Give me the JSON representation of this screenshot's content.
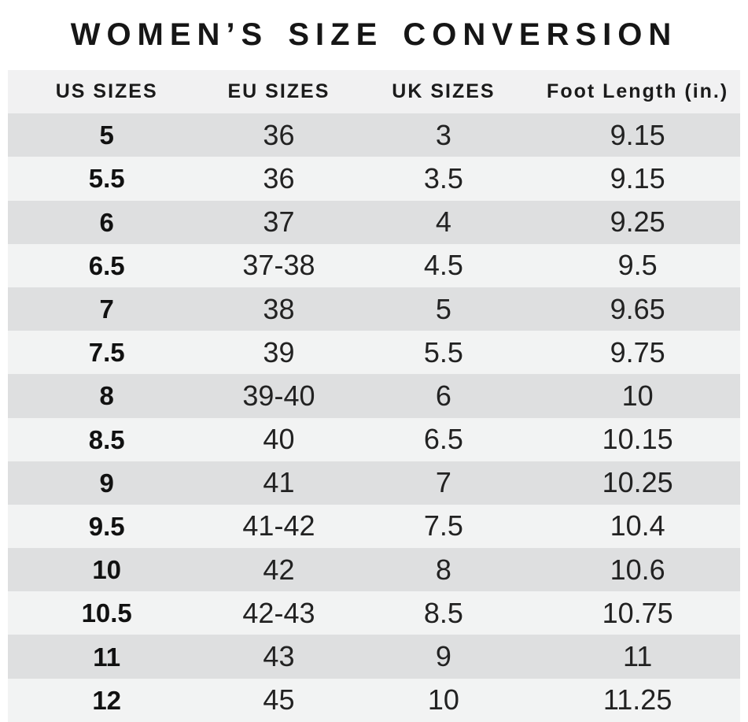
{
  "title": "WOMEN’S SIZE CONVERSION",
  "table": {
    "headers": [
      "US SIZES",
      "EU SIZES",
      "UK SIZES",
      "Foot Length (in.)"
    ],
    "rows": [
      [
        "5",
        "36",
        "3",
        "9.15"
      ],
      [
        "5.5",
        "36",
        "3.5",
        "9.15"
      ],
      [
        "6",
        "37",
        "4",
        "9.25"
      ],
      [
        "6.5",
        "37-38",
        "4.5",
        "9.5"
      ],
      [
        "7",
        "38",
        "5",
        "9.65"
      ],
      [
        "7.5",
        "39",
        "5.5",
        "9.75"
      ],
      [
        "8",
        "39-40",
        "6",
        "10"
      ],
      [
        "8.5",
        "40",
        "6.5",
        "10.15"
      ],
      [
        "9",
        "41",
        "7",
        "10.25"
      ],
      [
        "9.5",
        "41-42",
        "7.5",
        "10.4"
      ],
      [
        "10",
        "42",
        "8",
        "10.6"
      ],
      [
        "10.5",
        "42-43",
        "8.5",
        "10.75"
      ],
      [
        "11",
        "43",
        "9",
        "11"
      ],
      [
        "12",
        "45",
        "10",
        "11.25"
      ]
    ]
  },
  "chart_data": {
    "type": "table",
    "title": "WOMEN’S SIZE CONVERSION",
    "columns": [
      "US SIZES",
      "EU SIZES",
      "UK SIZES",
      "Foot Length (in.)"
    ],
    "rows": [
      [
        "5",
        "36",
        "3",
        "9.15"
      ],
      [
        "5.5",
        "36",
        "3.5",
        "9.15"
      ],
      [
        "6",
        "37",
        "4",
        "9.25"
      ],
      [
        "6.5",
        "37-38",
        "4.5",
        "9.5"
      ],
      [
        "7",
        "38",
        "5",
        "9.65"
      ],
      [
        "7.5",
        "39",
        "5.5",
        "9.75"
      ],
      [
        "8",
        "39-40",
        "6",
        "10"
      ],
      [
        "8.5",
        "40",
        "6.5",
        "10.15"
      ],
      [
        "9",
        "41",
        "7",
        "10.25"
      ],
      [
        "9.5",
        "41-42",
        "7.5",
        "10.4"
      ],
      [
        "10",
        "42",
        "8",
        "10.6"
      ],
      [
        "10.5",
        "42-43",
        "8.5",
        "10.75"
      ],
      [
        "11",
        "43",
        "9",
        "11"
      ],
      [
        "12",
        "45",
        "10",
        "11.25"
      ]
    ],
    "layout": {
      "striped": true,
      "stripe_start": "dark"
    }
  },
  "colors": {
    "background": "#ffffff",
    "header_bg": "#f1f1f2",
    "row_dark": "#dedfe0",
    "row_light": "#f2f3f3",
    "text": "#222222",
    "title_text": "#161616"
  }
}
